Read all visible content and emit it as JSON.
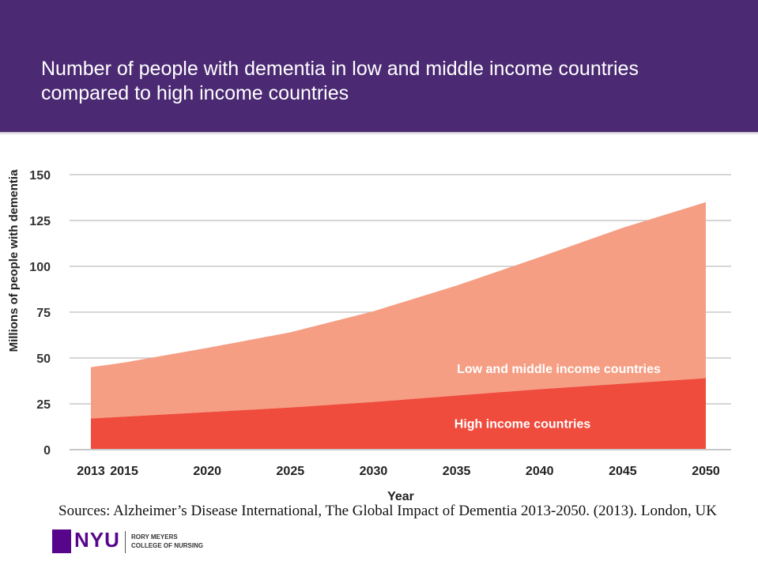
{
  "header": {
    "title_line1": "Number of people with dementia in low and middle income countries",
    "title_line2": "compared to high income countries"
  },
  "chart_data": {
    "type": "area",
    "stacked": true,
    "xlabel": "Year",
    "ylabel": "Millions of people with dementia",
    "ylim": [
      0,
      150
    ],
    "yticks": [
      0,
      25,
      50,
      75,
      100,
      125,
      150
    ],
    "x": [
      2013,
      2015,
      2020,
      2025,
      2030,
      2035,
      2040,
      2045,
      2050
    ],
    "x_tick_labels": [
      "2013",
      "2015",
      "2020",
      "2025",
      "2030",
      "2035",
      "2040",
      "2045",
      "2050"
    ],
    "grid": true,
    "series": [
      {
        "name": "High income countries",
        "color": "#ef4c3d",
        "values": [
          17,
          18,
          20.5,
          23,
          26,
          29.5,
          33,
          36,
          39
        ]
      },
      {
        "name": "Low and middle income countries",
        "color": "#f59e84",
        "values": [
          28,
          29.5,
          35,
          41,
          49.5,
          60,
          72,
          85,
          96
        ]
      }
    ],
    "totals": [
      45,
      47.5,
      55.5,
      64,
      75.5,
      89.5,
      105,
      121,
      135
    ]
  },
  "footer": {
    "sources": "Sources: Alzheimer’s Disease International, The Global Impact of Dementia 2013-2050. (2013).  London, UK",
    "logo_text": "NYU",
    "logo_sub1": "RORY MEYERS",
    "logo_sub2": "COLLEGE OF NURSING"
  },
  "colors": {
    "header_bg": "#4b2a73",
    "grid": "#c8c8c8",
    "brand": "#57068c"
  }
}
